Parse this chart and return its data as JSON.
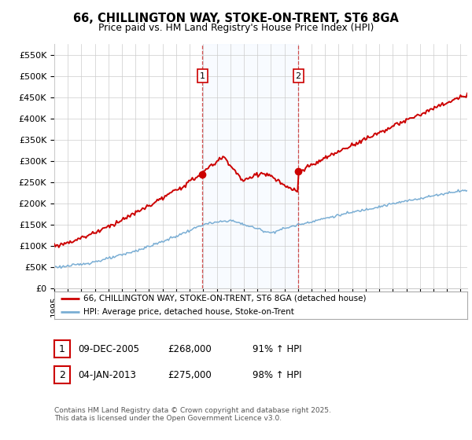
{
  "title": "66, CHILLINGTON WAY, STOKE-ON-TRENT, ST6 8GA",
  "subtitle": "Price paid vs. HM Land Registry's House Price Index (HPI)",
  "ylabel_ticks": [
    "£0",
    "£50K",
    "£100K",
    "£150K",
    "£200K",
    "£250K",
    "£300K",
    "£350K",
    "£400K",
    "£450K",
    "£500K",
    "£550K"
  ],
  "ytick_values": [
    0,
    50000,
    100000,
    150000,
    200000,
    250000,
    300000,
    350000,
    400000,
    450000,
    500000,
    550000
  ],
  "ylim": [
    0,
    575000
  ],
  "xlim_start": 1995,
  "xlim_end": 2025.5,
  "transaction1_year": 2005.93,
  "transaction1_value": 268000,
  "transaction2_year": 2013.02,
  "transaction2_value": 275000,
  "legend_label_red": "66, CHILLINGTON WAY, STOKE-ON-TRENT, ST6 8GA (detached house)",
  "legend_label_blue": "HPI: Average price, detached house, Stoke-on-Trent",
  "annotation1_date": "09-DEC-2005",
  "annotation1_price": "£268,000",
  "annotation1_hpi": "91% ↑ HPI",
  "annotation2_date": "04-JAN-2013",
  "annotation2_price": "£275,000",
  "annotation2_hpi": "98% ↑ HPI",
  "footer": "Contains HM Land Registry data © Crown copyright and database right 2025.\nThis data is licensed under the Open Government Licence v3.0.",
  "line_color_red": "#cc0000",
  "line_color_blue": "#7aaed4",
  "vline_color": "#cc3333",
  "bg_shade_color": "#ddeeff",
  "grid_color": "#cccccc",
  "background_color": "#ffffff"
}
